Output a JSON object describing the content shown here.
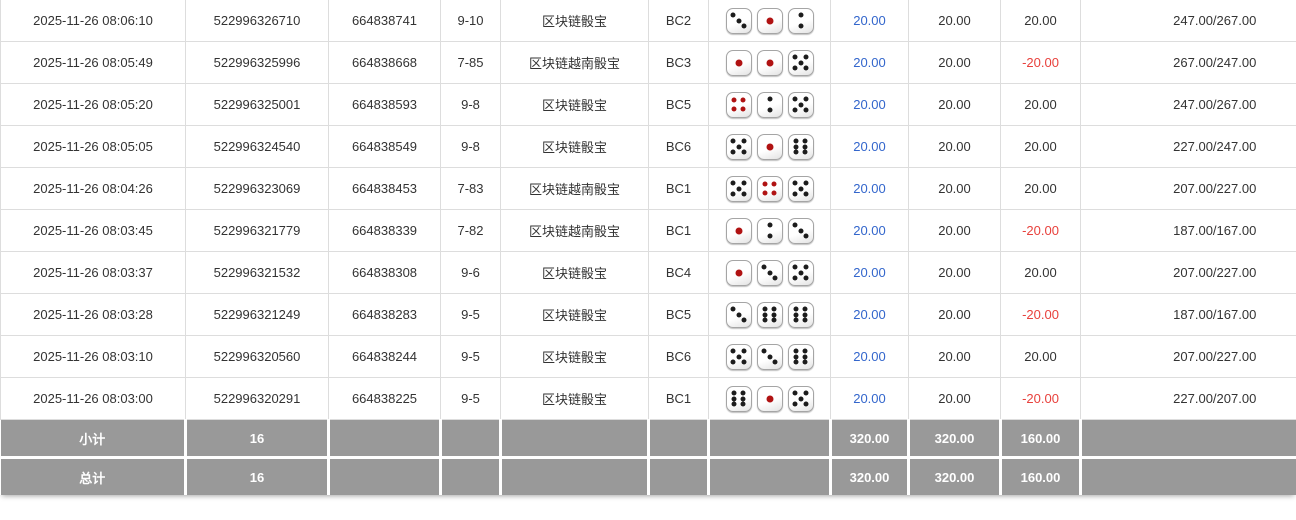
{
  "colors": {
    "link_blue": "#3366cc",
    "negative_red": "#e8413c",
    "footer_gray": "#999999",
    "row_border": "#dddddd",
    "text": "#333333",
    "dice_red_pip": "#b01212",
    "dice_black_pip": "#1c1c1c"
  },
  "table": {
    "rows": [
      {
        "time": "2025-11-26 08:06:10",
        "bet_id": "522996326710",
        "round_id": "664838741",
        "period": "9-10",
        "game": "区块链骰宝",
        "table_code": "BC2",
        "dice": [
          3,
          1,
          2
        ],
        "bet_amount": "20.00",
        "valid_amount": "20.00",
        "win_loss": "20.00",
        "balance": "247.00/267.00"
      },
      {
        "time": "2025-11-26 08:05:49",
        "bet_id": "522996325996",
        "round_id": "664838668",
        "period": "7-85",
        "game": "区块链越南骰宝",
        "table_code": "BC3",
        "dice": [
          1,
          1,
          5
        ],
        "bet_amount": "20.00",
        "valid_amount": "20.00",
        "win_loss": "-20.00",
        "balance": "267.00/247.00"
      },
      {
        "time": "2025-11-26 08:05:20",
        "bet_id": "522996325001",
        "round_id": "664838593",
        "period": "9-8",
        "game": "区块链骰宝",
        "table_code": "BC5",
        "dice": [
          4,
          2,
          5
        ],
        "bet_amount": "20.00",
        "valid_amount": "20.00",
        "win_loss": "20.00",
        "balance": "247.00/267.00"
      },
      {
        "time": "2025-11-26 08:05:05",
        "bet_id": "522996324540",
        "round_id": "664838549",
        "period": "9-8",
        "game": "区块链骰宝",
        "table_code": "BC6",
        "dice": [
          5,
          1,
          6
        ],
        "bet_amount": "20.00",
        "valid_amount": "20.00",
        "win_loss": "20.00",
        "balance": "227.00/247.00"
      },
      {
        "time": "2025-11-26 08:04:26",
        "bet_id": "522996323069",
        "round_id": "664838453",
        "period": "7-83",
        "game": "区块链越南骰宝",
        "table_code": "BC1",
        "dice": [
          5,
          4,
          5
        ],
        "bet_amount": "20.00",
        "valid_amount": "20.00",
        "win_loss": "20.00",
        "balance": "207.00/227.00"
      },
      {
        "time": "2025-11-26 08:03:45",
        "bet_id": "522996321779",
        "round_id": "664838339",
        "period": "7-82",
        "game": "区块链越南骰宝",
        "table_code": "BC1",
        "dice": [
          1,
          2,
          3
        ],
        "bet_amount": "20.00",
        "valid_amount": "20.00",
        "win_loss": "-20.00",
        "balance": "187.00/167.00"
      },
      {
        "time": "2025-11-26 08:03:37",
        "bet_id": "522996321532",
        "round_id": "664838308",
        "period": "9-6",
        "game": "区块链骰宝",
        "table_code": "BC4",
        "dice": [
          1,
          3,
          5
        ],
        "bet_amount": "20.00",
        "valid_amount": "20.00",
        "win_loss": "20.00",
        "balance": "207.00/227.00"
      },
      {
        "time": "2025-11-26 08:03:28",
        "bet_id": "522996321249",
        "round_id": "664838283",
        "period": "9-5",
        "game": "区块链骰宝",
        "table_code": "BC5",
        "dice": [
          3,
          6,
          6
        ],
        "bet_amount": "20.00",
        "valid_amount": "20.00",
        "win_loss": "-20.00",
        "balance": "187.00/167.00"
      },
      {
        "time": "2025-11-26 08:03:10",
        "bet_id": "522996320560",
        "round_id": "664838244",
        "period": "9-5",
        "game": "区块链骰宝",
        "table_code": "BC6",
        "dice": [
          5,
          3,
          6
        ],
        "bet_amount": "20.00",
        "valid_amount": "20.00",
        "win_loss": "20.00",
        "balance": "207.00/227.00"
      },
      {
        "time": "2025-11-26 08:03:00",
        "bet_id": "522996320291",
        "round_id": "664838225",
        "period": "9-5",
        "game": "区块链骰宝",
        "table_code": "BC1",
        "dice": [
          6,
          1,
          5
        ],
        "bet_amount": "20.00",
        "valid_amount": "20.00",
        "win_loss": "-20.00",
        "balance": "227.00/207.00"
      }
    ],
    "footer": [
      {
        "label": "小计",
        "count": "16",
        "bet_total": "320.00",
        "valid_total": "320.00",
        "winloss_total": "160.00"
      },
      {
        "label": "总计",
        "count": "16",
        "bet_total": "320.00",
        "valid_total": "320.00",
        "winloss_total": "160.00"
      }
    ]
  }
}
